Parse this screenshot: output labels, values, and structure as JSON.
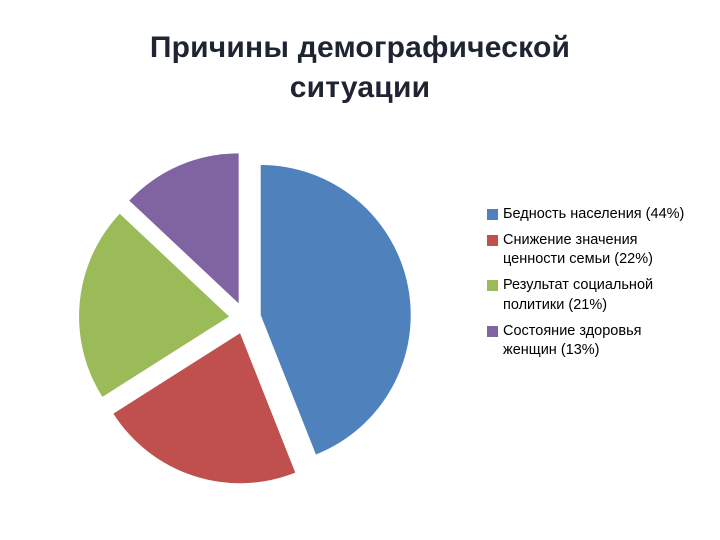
{
  "title": "Причины демографической ситуации",
  "chart_data": {
    "type": "pie",
    "title": "Причины демографической ситуации",
    "categories": [
      "Бедность населения",
      "Снижение значения ценности семьи",
      "Результат социальной политики",
      "Состояние здоровья женщин"
    ],
    "values": [
      44,
      22,
      21,
      13
    ],
    "unit": "%",
    "colors": [
      "#4F81BD",
      "#C0504D",
      "#9BBB59",
      "#8064A2"
    ],
    "start_angle_deg": 0,
    "direction": "clockwise",
    "exploded": true,
    "legend_position": "right",
    "legend": [
      {
        "label": "Бедность населения (44%)"
      },
      {
        "label": "Снижение значения ценности семьи (22%)"
      },
      {
        "label": "Результат социальной политики (21%)"
      },
      {
        "label": "Состояние здоровья женщин (13%)"
      }
    ]
  }
}
